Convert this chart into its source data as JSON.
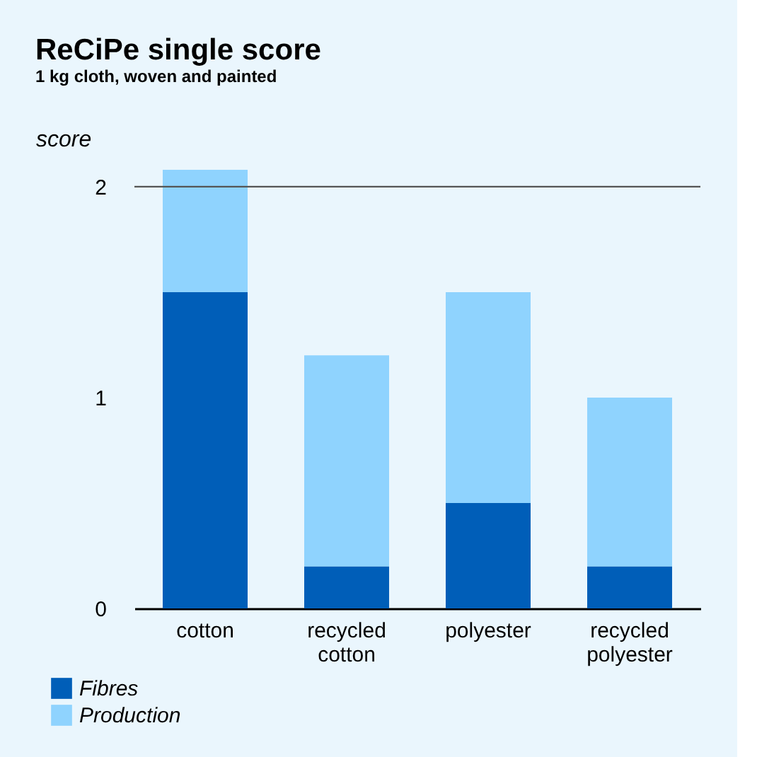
{
  "chart_data": {
    "type": "bar",
    "title": "ReCiPe single score",
    "subtitle": "1 kg cloth, woven and painted",
    "ylabel": "score",
    "categories": [
      "cotton",
      "recycled cotton",
      "polyester",
      "recycled polyester"
    ],
    "stacked": true,
    "series": [
      {
        "name": "Fibres",
        "color": "#005eb8",
        "values": [
          1.5,
          0.2,
          0.5,
          0.2
        ]
      },
      {
        "name": "Production",
        "color": "#8fd3fe",
        "values": [
          0.58,
          1.0,
          1.0,
          0.8
        ]
      }
    ],
    "ylim": [
      0,
      2.08
    ],
    "yticks": [
      0,
      1,
      2
    ],
    "ref_lines": [
      {
        "axis": "y",
        "value": 2,
        "color": "#555555"
      }
    ],
    "grid": false,
    "legend": "bottom left"
  }
}
